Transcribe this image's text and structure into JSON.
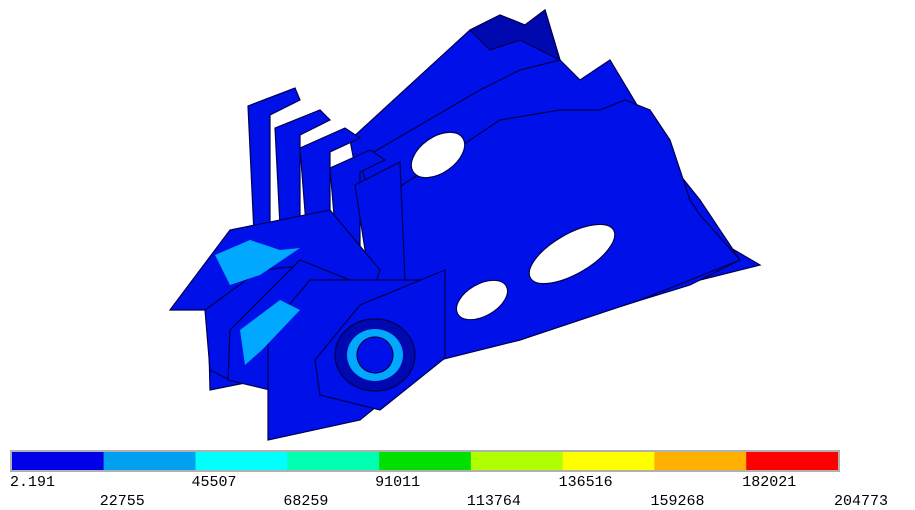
{
  "legend": {
    "levels": [
      2.191,
      22755,
      45507,
      68259,
      91011,
      113764,
      136516,
      159268,
      182021,
      204773
    ],
    "colors": [
      "#0000e8",
      "#00a0f0",
      "#00ffff",
      "#00ffb0",
      "#00e000",
      "#b0ff00",
      "#ffff00",
      "#ffb000",
      "#ff0000"
    ]
  }
}
